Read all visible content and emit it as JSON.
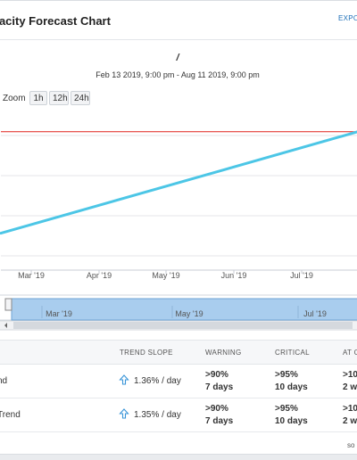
{
  "header": {
    "title": "pacity Forecast Chart",
    "export_label": "EXPO"
  },
  "chart_data": {
    "type": "line",
    "title": "/",
    "subtitle": "Feb 13 2019, 9:00 pm - Aug 11 2019, 9:00 pm",
    "x_ticks": [
      "Mar '19",
      "Apr '19",
      "May '19",
      "Jun '19",
      "Jul '19"
    ],
    "series": [
      {
        "name": "",
        "color": "#4cc6e6",
        "x": [
          "2019-02-13",
          "2019-08-11"
        ],
        "y": [
          56,
          100
        ]
      }
    ],
    "threshold": {
      "color": "#e0201c",
      "value": 100
    },
    "grid": true,
    "navigator": {
      "x_ticks": [
        "Mar '19",
        "May '19",
        "Jul '19"
      ]
    }
  },
  "zoom": {
    "label": "Zoom",
    "buttons": [
      "1h",
      "12h",
      "24h"
    ]
  },
  "table": {
    "columns": [
      "TREND SLOPE",
      "WARNING",
      "CRITICAL",
      "AT C"
    ],
    "rows": [
      {
        "name": "nd",
        "slope": "1.36% / day",
        "warning_pct": ">90%",
        "warning_time": "7 days",
        "critical_pct": ">95%",
        "critical_time": "10 days",
        "at_pct": ">10",
        "at_time": "2 w"
      },
      {
        "name": "Trend",
        "slope": "1.35% / day",
        "warning_pct": ">90%",
        "warning_time": "7 days",
        "critical_pct": ">95%",
        "critical_time": "10 days",
        "at_pct": ">10",
        "at_time": "2 w"
      }
    ]
  },
  "footer": {
    "text": "so"
  }
}
